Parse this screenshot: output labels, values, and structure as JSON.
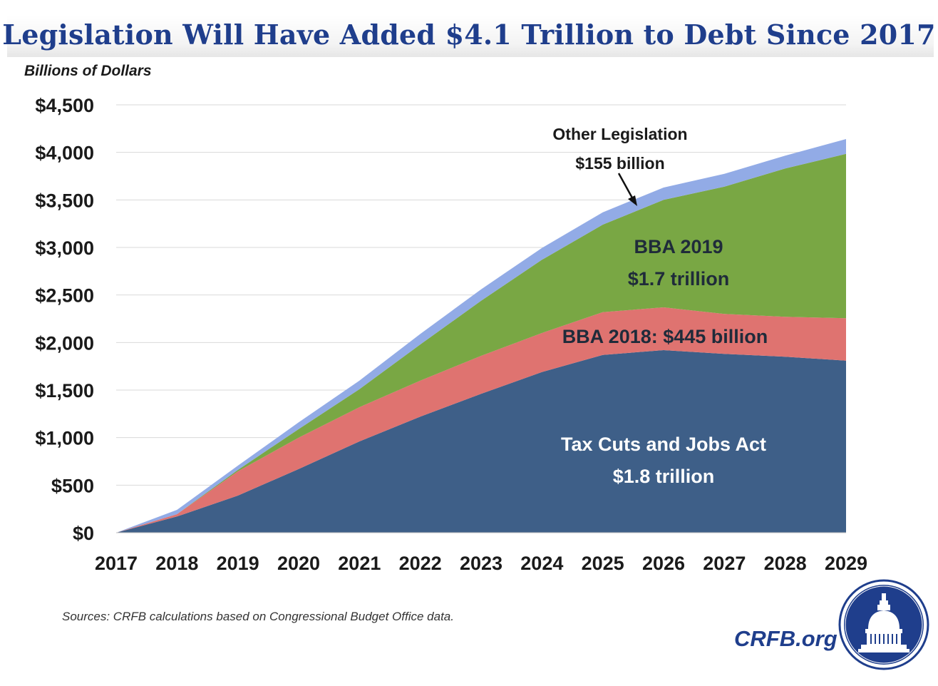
{
  "title": "Legislation Will Have Added $4.1 Trillion to Debt Since 2017",
  "source_note": "Sources: CRFB calculations based on Congressional  Budget Office data.",
  "brand": "CRFB.org",
  "logo_icon": "capitol-dome-seal-icon",
  "colors": {
    "tcja": "#3e5f88",
    "bba2018": "#df7370",
    "bba2019": "#79a744",
    "other": "#92abe6",
    "title": "#1f3e8c"
  },
  "chart_data": {
    "type": "area",
    "stacked": true,
    "title": "Legislation Will Have Added $4.1 Trillion to Debt Since 2017",
    "ylabel": "Billions of Dollars",
    "xlabel": "",
    "ylim": [
      0,
      4500
    ],
    "yticks": [
      0,
      500,
      1000,
      1500,
      2000,
      2500,
      3000,
      3500,
      4000,
      4500
    ],
    "ytick_labels": [
      "$0",
      "$500",
      "$1,000",
      "$1,500",
      "$2,000",
      "$2,500",
      "$3,000",
      "$3,500",
      "$4,000",
      "$4,500"
    ],
    "x": [
      "2017",
      "2018",
      "2019",
      "2020",
      "2021",
      "2022",
      "2023",
      "2024",
      "2025",
      "2026",
      "2027",
      "2028",
      "2029"
    ],
    "grid": true,
    "legend": "none",
    "series": [
      {
        "key": "tcja",
        "values": [
          0,
          170,
          390,
          670,
          960,
          1220,
          1460,
          1690,
          1870,
          1920,
          1880,
          1850,
          1810
        ]
      },
      {
        "key": "bba2018",
        "values": [
          0,
          25,
          255,
          330,
          360,
          380,
          400,
          410,
          450,
          450,
          420,
          420,
          445
        ]
      },
      {
        "key": "bba2019",
        "values": [
          0,
          0,
          15,
          90,
          190,
          380,
          580,
          770,
          920,
          1130,
          1340,
          1560,
          1730
        ]
      },
      {
        "key": "other",
        "values": [
          0,
          45,
          45,
          70,
          90,
          110,
          120,
          125,
          130,
          130,
          135,
          135,
          155
        ]
      }
    ],
    "annotations": [
      {
        "key": "tcja",
        "lines": [
          "Tax Cuts and Jobs Act",
          "$1.8 trillion"
        ]
      },
      {
        "key": "bba2018",
        "lines": [
          "BBA 2018: $445 billion"
        ]
      },
      {
        "key": "bba2019",
        "lines": [
          "BBA 2019",
          "$1.7 trillion"
        ]
      },
      {
        "key": "other",
        "lines": [
          "Other Legislation",
          "$155 billion"
        ],
        "arrow": true
      }
    ]
  }
}
